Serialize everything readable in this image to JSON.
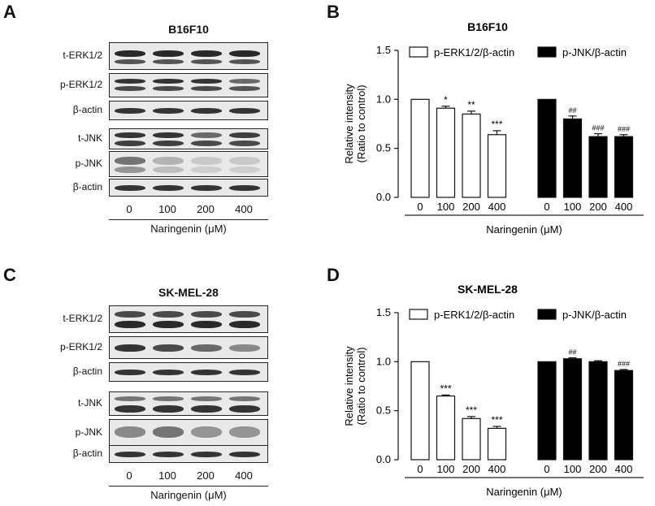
{
  "panels": {
    "A": {
      "letter": "A",
      "title": "B16F10"
    },
    "B": {
      "letter": "B"
    },
    "C": {
      "letter": "C",
      "title": "SK-MEL-28"
    },
    "D": {
      "letter": "D"
    }
  },
  "western_blot": {
    "labels": [
      "t-ERK1/2",
      "p-ERK1/2",
      "β-actin",
      "t-JNK",
      "p-JNK",
      "β-actin"
    ],
    "lanes": [
      "0",
      "100",
      "200",
      "400"
    ],
    "xlabel": "Naringenin (μM)"
  },
  "chart_data": [
    {
      "type": "bar",
      "title": "B16F10",
      "ylabel": "Relative intensity\n(Ratio to control)",
      "xlabel": "Naringenin (μM)",
      "ylim": [
        0,
        1.5
      ],
      "yticks": [
        "0.0",
        "0.5",
        "1.0",
        "1.5"
      ],
      "categories": [
        "0",
        "100",
        "200",
        "400"
      ],
      "series": [
        {
          "name": "p-ERK1/2/β-actin",
          "fill": "#ffffff",
          "values": [
            1.0,
            0.91,
            0.85,
            0.64
          ],
          "errors": [
            0,
            0.02,
            0.03,
            0.04
          ],
          "annotations": [
            "",
            "*",
            "**",
            "***"
          ]
        },
        {
          "name": "p-JNK/β-actin",
          "fill": "#000000",
          "values": [
            1.0,
            0.8,
            0.62,
            0.62
          ],
          "errors": [
            0,
            0.03,
            0.03,
            0.02
          ],
          "annotations": [
            "",
            "##",
            "###",
            "###"
          ]
        }
      ],
      "legend_position": "top"
    },
    {
      "type": "bar",
      "title": "SK-MEL-28",
      "ylabel": "Relative intensity\n(Ratio to control)",
      "xlabel": "Naringenin (μM)",
      "ylim": [
        0,
        1.5
      ],
      "yticks": [
        "0.0",
        "0.5",
        "1.0",
        "1.5"
      ],
      "categories": [
        "0",
        "100",
        "200",
        "400"
      ],
      "series": [
        {
          "name": "p-ERK1/2/β-actin",
          "fill": "#ffffff",
          "values": [
            1.0,
            0.65,
            0.42,
            0.32
          ],
          "errors": [
            0,
            0.01,
            0.02,
            0.02
          ],
          "annotations": [
            "",
            "***",
            "***",
            "***"
          ]
        },
        {
          "name": "p-JNK/β-actin",
          "fill": "#000000",
          "values": [
            1.0,
            1.03,
            1.0,
            0.91
          ],
          "errors": [
            0,
            0.01,
            0.01,
            0.01
          ],
          "annotations": [
            "",
            "##",
            "",
            "###"
          ]
        }
      ],
      "legend_position": "top"
    }
  ]
}
